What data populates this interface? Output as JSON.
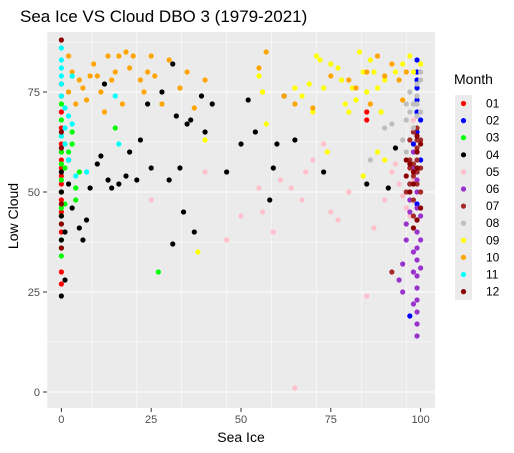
{
  "chart_data": {
    "type": "scatter",
    "title": "Sea Ice VS Cloud DBO 3 (1979-2021)",
    "xlabel": "Sea Ice",
    "ylabel": "Low Cloud",
    "xlim": [
      -4,
      104
    ],
    "ylim": [
      -4,
      90
    ],
    "xticks": [
      0,
      25,
      50,
      75,
      100
    ],
    "yticks": [
      0,
      25,
      50,
      75
    ],
    "grid": true,
    "legend": {
      "title": "Month",
      "placement": "right"
    },
    "series": [
      {
        "name": "01",
        "color": "#ff0000",
        "points": [
          [
            0,
            27
          ],
          [
            0,
            30
          ],
          [
            0,
            40
          ],
          [
            0,
            45
          ],
          [
            0,
            48
          ],
          [
            0,
            50
          ],
          [
            0,
            52
          ],
          [
            0,
            54
          ],
          [
            0,
            56
          ],
          [
            0,
            58
          ],
          [
            0,
            60
          ],
          [
            0,
            62
          ],
          [
            0,
            66
          ],
          [
            0,
            70
          ],
          [
            0,
            74
          ],
          [
            0,
            77
          ],
          [
            85,
            68
          ],
          [
            85,
            70
          ]
        ]
      },
      {
        "name": "02",
        "color": "#0000ff",
        "points": [
          [
            97,
            19
          ],
          [
            97,
            52
          ],
          [
            99,
            55
          ],
          [
            99,
            60
          ],
          [
            99,
            65
          ],
          [
            99,
            70
          ],
          [
            99,
            73
          ],
          [
            99,
            76
          ],
          [
            99,
            78
          ],
          [
            99,
            80
          ],
          [
            99,
            83
          ],
          [
            98,
            62
          ],
          [
            100,
            58
          ],
          [
            100,
            68
          ],
          [
            99,
            47
          ]
        ]
      },
      {
        "name": "03",
        "color": "#00ff00",
        "points": [
          [
            0,
            34
          ],
          [
            0,
            36
          ],
          [
            0,
            38
          ],
          [
            0,
            42
          ],
          [
            0,
            44
          ],
          [
            0,
            46
          ],
          [
            0,
            50
          ],
          [
            0,
            53
          ],
          [
            0,
            57
          ],
          [
            0,
            60
          ],
          [
            0,
            64
          ],
          [
            0,
            68
          ],
          [
            0,
            72
          ],
          [
            1,
            47
          ],
          [
            1,
            56
          ],
          [
            2,
            60
          ],
          [
            3,
            62
          ],
          [
            3,
            65
          ],
          [
            4,
            48
          ],
          [
            4,
            51
          ],
          [
            5,
            55
          ],
          [
            15,
            66
          ],
          [
            27,
            30
          ]
        ]
      },
      {
        "name": "04",
        "color": "#000000",
        "points": [
          [
            0,
            24
          ],
          [
            0,
            38
          ],
          [
            0,
            44
          ],
          [
            0,
            50
          ],
          [
            0,
            55
          ],
          [
            1,
            28
          ],
          [
            1,
            40
          ],
          [
            2,
            52
          ],
          [
            2,
            58
          ],
          [
            3,
            46
          ],
          [
            5,
            41
          ],
          [
            6,
            38
          ],
          [
            7,
            43
          ],
          [
            8,
            51
          ],
          [
            10,
            57
          ],
          [
            11,
            59
          ],
          [
            12,
            77
          ],
          [
            13,
            53
          ],
          [
            14,
            51
          ],
          [
            16,
            52
          ],
          [
            18,
            54
          ],
          [
            19,
            60
          ],
          [
            21,
            53
          ],
          [
            22,
            63
          ],
          [
            24,
            72
          ],
          [
            25,
            56
          ],
          [
            28,
            75
          ],
          [
            30,
            53
          ],
          [
            31,
            82
          ],
          [
            31,
            37
          ],
          [
            32,
            69
          ],
          [
            33,
            56
          ],
          [
            34,
            45
          ],
          [
            35,
            67
          ],
          [
            36,
            68
          ],
          [
            37,
            40
          ],
          [
            39,
            74
          ],
          [
            40,
            65
          ],
          [
            42,
            72
          ],
          [
            46,
            55
          ],
          [
            50,
            62
          ],
          [
            52,
            73
          ],
          [
            54,
            65
          ],
          [
            58,
            48
          ],
          [
            59,
            56
          ],
          [
            60,
            62
          ],
          [
            62,
            74
          ],
          [
            65,
            63
          ],
          [
            73,
            55
          ],
          [
            85,
            52
          ],
          [
            91,
            51
          ],
          [
            93,
            61
          ]
        ]
      },
      {
        "name": "05",
        "color": "#ffc0cb",
        "points": [
          [
            25,
            48
          ],
          [
            40,
            55
          ],
          [
            46,
            38
          ],
          [
            50,
            44
          ],
          [
            55,
            51
          ],
          [
            56,
            45
          ],
          [
            59,
            40
          ],
          [
            61,
            53
          ],
          [
            64,
            51
          ],
          [
            65,
            1
          ],
          [
            67,
            48
          ],
          [
            68,
            55
          ],
          [
            70,
            58
          ],
          [
            73,
            62
          ],
          [
            75,
            45
          ],
          [
            77,
            43
          ],
          [
            80,
            50
          ],
          [
            85,
            24
          ],
          [
            87,
            41
          ],
          [
            90,
            48
          ],
          [
            92,
            55
          ],
          [
            93,
            57
          ],
          [
            94,
            52
          ],
          [
            95,
            49
          ],
          [
            96,
            46
          ],
          [
            97,
            44
          ],
          [
            98,
            53
          ],
          [
            99,
            60
          ],
          [
            98,
            68
          ]
        ]
      },
      {
        "name": "06",
        "color": "#9932cc",
        "points": [
          [
            94,
            28
          ],
          [
            95,
            25
          ],
          [
            95,
            32
          ],
          [
            96,
            38
          ],
          [
            96,
            42
          ],
          [
            97,
            45
          ],
          [
            97,
            48
          ],
          [
            98,
            22
          ],
          [
            98,
            30
          ],
          [
            98,
            35
          ],
          [
            99,
            14
          ],
          [
            99,
            17
          ],
          [
            99,
            20
          ],
          [
            99,
            23
          ],
          [
            99,
            26
          ],
          [
            99,
            29
          ],
          [
            99,
            33
          ],
          [
            99,
            36
          ],
          [
            99,
            40
          ],
          [
            99,
            43
          ],
          [
            99,
            46
          ],
          [
            99,
            50
          ],
          [
            99,
            53
          ],
          [
            100,
            31
          ],
          [
            100,
            38
          ],
          [
            100,
            44
          ],
          [
            98,
            56
          ],
          [
            98,
            60
          ]
        ]
      },
      {
        "name": "07",
        "color": "#a52a2a",
        "points": [
          [
            92,
            30
          ],
          [
            96,
            50
          ],
          [
            97,
            52
          ],
          [
            97,
            56
          ],
          [
            97,
            58
          ],
          [
            98,
            44
          ],
          [
            98,
            48
          ],
          [
            98,
            54
          ],
          [
            98,
            57
          ],
          [
            99,
            52
          ],
          [
            99,
            55
          ],
          [
            99,
            58
          ],
          [
            99,
            61
          ],
          [
            99,
            63
          ],
          [
            99,
            66
          ],
          [
            100,
            50
          ],
          [
            100,
            56
          ],
          [
            100,
            63
          ],
          [
            97,
            63
          ],
          [
            98,
            65
          ]
        ]
      },
      {
        "name": "08",
        "color": "#bebebe",
        "points": [
          [
            86,
            58
          ],
          [
            90,
            66
          ],
          [
            92,
            67
          ],
          [
            95,
            63
          ],
          [
            96,
            68
          ],
          [
            96,
            72
          ],
          [
            97,
            70
          ],
          [
            97,
            75
          ],
          [
            98,
            66
          ],
          [
            98,
            72
          ],
          [
            99,
            69
          ],
          [
            99,
            72
          ],
          [
            99,
            74
          ],
          [
            99,
            77
          ],
          [
            100,
            70
          ],
          [
            100,
            78
          ],
          [
            100,
            80
          ],
          [
            96,
            60
          ]
        ]
      },
      {
        "name": "09",
        "color": "#ffff00",
        "points": [
          [
            38,
            35
          ],
          [
            40,
            63
          ],
          [
            55,
            79
          ],
          [
            56,
            75
          ],
          [
            57,
            67
          ],
          [
            65,
            76
          ],
          [
            67,
            74
          ],
          [
            69,
            77
          ],
          [
            70,
            70
          ],
          [
            71,
            84
          ],
          [
            72,
            83
          ],
          [
            73,
            76
          ],
          [
            74,
            60
          ],
          [
            75,
            82
          ],
          [
            77,
            81
          ],
          [
            78,
            78
          ],
          [
            79,
            72
          ],
          [
            80,
            70
          ],
          [
            81,
            76
          ],
          [
            82,
            73
          ],
          [
            83,
            85
          ],
          [
            84,
            80
          ],
          [
            85,
            75
          ],
          [
            86,
            83
          ],
          [
            87,
            80
          ],
          [
            88,
            76
          ],
          [
            89,
            70
          ],
          [
            90,
            78
          ],
          [
            93,
            80
          ],
          [
            95,
            82
          ],
          [
            97,
            84
          ],
          [
            98,
            80
          ],
          [
            84,
            54
          ],
          [
            88,
            60
          ],
          [
            90,
            58
          ],
          [
            100,
            82
          ]
        ]
      },
      {
        "name": "10",
        "color": "#ffa500",
        "points": [
          [
            1,
            62
          ],
          [
            2,
            75
          ],
          [
            2,
            84
          ],
          [
            3,
            80
          ],
          [
            4,
            72
          ],
          [
            5,
            78
          ],
          [
            6,
            76
          ],
          [
            7,
            73
          ],
          [
            8,
            79
          ],
          [
            9,
            82
          ],
          [
            10,
            79
          ],
          [
            11,
            75
          ],
          [
            12,
            70
          ],
          [
            13,
            84
          ],
          [
            14,
            78
          ],
          [
            15,
            80
          ],
          [
            16,
            84
          ],
          [
            17,
            72
          ],
          [
            18,
            85
          ],
          [
            19,
            81
          ],
          [
            20,
            84
          ],
          [
            22,
            78
          ],
          [
            23,
            75
          ],
          [
            24,
            80
          ],
          [
            25,
            84
          ],
          [
            26,
            79
          ],
          [
            28,
            72
          ],
          [
            30,
            83
          ],
          [
            33,
            76
          ],
          [
            35,
            80
          ],
          [
            37,
            71
          ],
          [
            40,
            78
          ],
          [
            55,
            81
          ],
          [
            57,
            85
          ],
          [
            62,
            74
          ],
          [
            65,
            72
          ],
          [
            70,
            71
          ],
          [
            75,
            79
          ],
          [
            80,
            78
          ],
          [
            82,
            76
          ],
          [
            85,
            80
          ],
          [
            86,
            72
          ],
          [
            88,
            84
          ],
          [
            90,
            79
          ],
          [
            92,
            82
          ],
          [
            94,
            78
          ],
          [
            95,
            73
          ],
          [
            96,
            80
          ]
        ]
      },
      {
        "name": "11",
        "color": "#00ffff",
        "points": [
          [
            0,
            74
          ],
          [
            0,
            77
          ],
          [
            0,
            79
          ],
          [
            0,
            81
          ],
          [
            0,
            83
          ],
          [
            0,
            86
          ],
          [
            1,
            71
          ],
          [
            1,
            66
          ],
          [
            2,
            69
          ],
          [
            2,
            58
          ],
          [
            3,
            79
          ],
          [
            4,
            54
          ],
          [
            7,
            55
          ],
          [
            15,
            74
          ],
          [
            16,
            62
          ],
          [
            0,
            64
          ],
          [
            1,
            62
          ],
          [
            3,
            67
          ]
        ]
      },
      {
        "name": "12",
        "color": "#8b0000",
        "points": [
          [
            0,
            88
          ],
          [
            0,
            65
          ],
          [
            0,
            61
          ],
          [
            0,
            47
          ],
          [
            0,
            42
          ],
          [
            0,
            36
          ],
          [
            96,
            58
          ],
          [
            97,
            57
          ],
          [
            98,
            52
          ],
          [
            98,
            55
          ],
          [
            99,
            56
          ],
          [
            99,
            60
          ],
          [
            99,
            64
          ],
          [
            100,
            62
          ],
          [
            96,
            54
          ],
          [
            97,
            50
          ],
          [
            100,
            46
          ],
          [
            98,
            41
          ],
          [
            99,
            43
          ]
        ]
      }
    ]
  }
}
